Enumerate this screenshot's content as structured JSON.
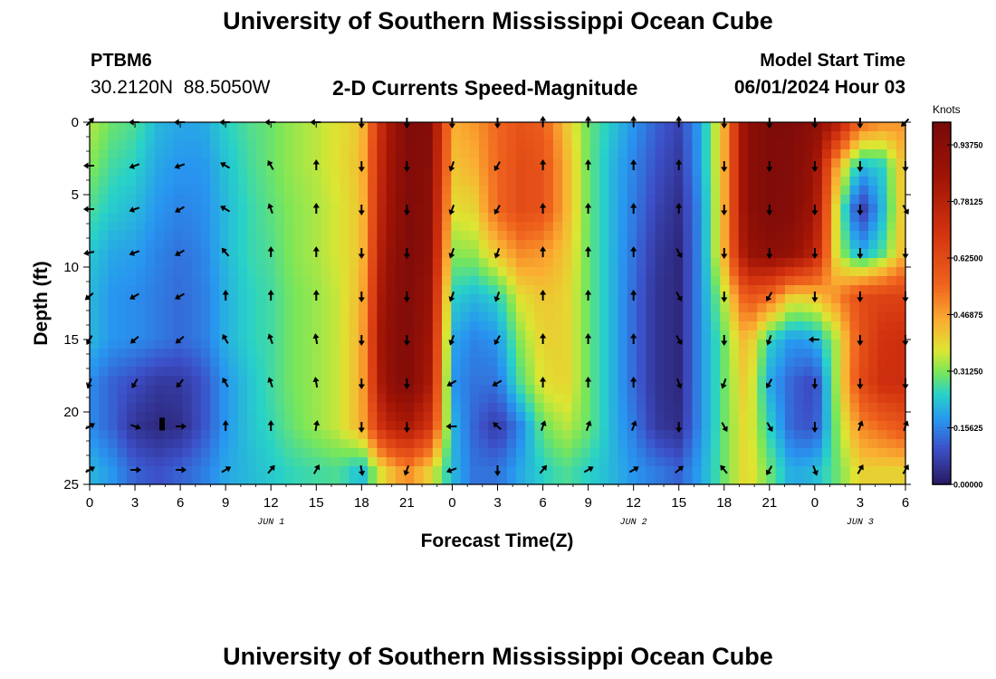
{
  "header": {
    "title": "University of Southern Mississippi Ocean Cube",
    "station_id": "PTBM6",
    "station_coords": "30.2120N  88.5050W",
    "product_title": "2-D Currents Speed-Magnitude",
    "model_start_label": "Model Start Time",
    "model_start_value": "06/01/2024 Hour 03"
  },
  "footer": {
    "title": "University of Southern Mississippi Ocean Cube"
  },
  "chart_data": {
    "type": "heatmap",
    "title": "2-D Currents Speed-Magnitude",
    "xlabel": "Forecast Time(Z)",
    "ylabel": "Depth (ft)",
    "x_ticks": [
      "0",
      "3",
      "6",
      "9",
      "12",
      "15",
      "18",
      "21",
      "0",
      "3",
      "6",
      "9",
      "12",
      "15",
      "18",
      "21",
      "0",
      "3",
      "6"
    ],
    "date_labels": [
      {
        "label": "JUN 1",
        "tick_index": 4
      },
      {
        "label": "JUN 2",
        "tick_index": 12
      },
      {
        "label": "JUN 3",
        "tick_index": 17
      }
    ],
    "y_ticks": [
      0,
      5,
      10,
      15,
      20,
      25
    ],
    "ylim": [
      0,
      25
    ],
    "x_hours_range": [
      0,
      54
    ],
    "colorbar": {
      "title": "Knots",
      "range": [
        0,
        1.0
      ],
      "tick_values": [
        0.0,
        0.15625,
        0.3125,
        0.46875,
        0.625,
        0.78125,
        0.9375
      ],
      "tick_labels": [
        "0.00000",
        "0.15625",
        "0.31250",
        "0.46875",
        "0.62500",
        "0.78125",
        "0.93750"
      ]
    },
    "speed_depths_ft": [
      0,
      3,
      6,
      9,
      12,
      15,
      18,
      21,
      24
    ],
    "speed_hours": [
      0,
      1.5,
      3,
      4.5,
      6,
      7.5,
      9,
      10.5,
      12,
      13.5,
      15,
      16.5,
      18,
      19.5,
      21,
      22.5,
      24,
      25.5,
      27,
      28.5,
      30,
      31.5,
      33,
      34.5,
      36,
      37.5,
      39,
      40.5,
      42,
      43.5,
      45,
      46.5,
      48,
      49.5,
      51,
      52.5,
      54
    ],
    "speed_knots": [
      [
        0.35,
        0.3,
        0.28,
        0.22,
        0.2,
        0.2,
        0.25,
        0.28,
        0.3,
        0.33,
        0.35,
        0.38,
        0.42,
        0.78,
        0.97,
        0.95,
        0.45,
        0.48,
        0.55,
        0.6,
        0.57,
        0.42,
        0.3,
        0.24,
        0.18,
        0.12,
        0.08,
        0.2,
        0.45,
        0.92,
        0.97,
        0.97,
        0.92,
        0.8,
        0.55,
        0.5,
        0.48
      ],
      [
        0.32,
        0.27,
        0.25,
        0.2,
        0.18,
        0.18,
        0.23,
        0.27,
        0.3,
        0.33,
        0.35,
        0.38,
        0.43,
        0.8,
        0.97,
        0.94,
        0.42,
        0.45,
        0.55,
        0.62,
        0.6,
        0.45,
        0.3,
        0.22,
        0.16,
        0.1,
        0.06,
        0.2,
        0.45,
        0.92,
        0.97,
        0.96,
        0.88,
        0.45,
        0.22,
        0.25,
        0.45
      ],
      [
        0.28,
        0.24,
        0.22,
        0.18,
        0.16,
        0.17,
        0.22,
        0.26,
        0.29,
        0.32,
        0.34,
        0.37,
        0.42,
        0.82,
        0.97,
        0.93,
        0.38,
        0.4,
        0.55,
        0.62,
        0.6,
        0.45,
        0.3,
        0.22,
        0.15,
        0.08,
        0.04,
        0.18,
        0.45,
        0.92,
        0.97,
        0.95,
        0.85,
        0.35,
        0.05,
        0.22,
        0.45
      ],
      [
        0.24,
        0.2,
        0.19,
        0.16,
        0.14,
        0.16,
        0.22,
        0.26,
        0.28,
        0.32,
        0.34,
        0.37,
        0.42,
        0.85,
        0.97,
        0.92,
        0.32,
        0.33,
        0.42,
        0.5,
        0.48,
        0.42,
        0.3,
        0.22,
        0.14,
        0.06,
        0.03,
        0.18,
        0.45,
        0.88,
        0.93,
        0.9,
        0.78,
        0.35,
        0.2,
        0.28,
        0.45
      ],
      [
        0.22,
        0.18,
        0.17,
        0.15,
        0.13,
        0.15,
        0.21,
        0.25,
        0.27,
        0.31,
        0.33,
        0.36,
        0.44,
        0.88,
        0.97,
        0.88,
        0.25,
        0.22,
        0.25,
        0.38,
        0.42,
        0.4,
        0.3,
        0.22,
        0.13,
        0.05,
        0.03,
        0.18,
        0.35,
        0.6,
        0.55,
        0.4,
        0.42,
        0.5,
        0.62,
        0.65,
        0.65
      ],
      [
        0.22,
        0.18,
        0.17,
        0.15,
        0.13,
        0.15,
        0.21,
        0.25,
        0.27,
        0.31,
        0.33,
        0.36,
        0.45,
        0.9,
        0.97,
        0.85,
        0.2,
        0.16,
        0.18,
        0.32,
        0.4,
        0.4,
        0.3,
        0.22,
        0.13,
        0.05,
        0.03,
        0.18,
        0.3,
        0.45,
        0.25,
        0.18,
        0.2,
        0.35,
        0.6,
        0.7,
        0.72
      ],
      [
        0.17,
        0.12,
        0.09,
        0.06,
        0.06,
        0.1,
        0.18,
        0.23,
        0.27,
        0.31,
        0.33,
        0.36,
        0.45,
        0.88,
        0.97,
        0.82,
        0.18,
        0.14,
        0.14,
        0.28,
        0.38,
        0.4,
        0.3,
        0.22,
        0.13,
        0.05,
        0.03,
        0.18,
        0.3,
        0.42,
        0.2,
        0.12,
        0.08,
        0.35,
        0.62,
        0.72,
        0.72
      ],
      [
        0.17,
        0.12,
        0.05,
        0.03,
        0.04,
        0.1,
        0.18,
        0.23,
        0.26,
        0.3,
        0.33,
        0.36,
        0.45,
        0.75,
        0.82,
        0.7,
        0.22,
        0.12,
        0.06,
        0.16,
        0.3,
        0.35,
        0.3,
        0.22,
        0.15,
        0.06,
        0.04,
        0.18,
        0.3,
        0.4,
        0.25,
        0.12,
        0.1,
        0.32,
        0.5,
        0.55,
        0.6
      ],
      [
        0.22,
        0.18,
        0.12,
        0.1,
        0.12,
        0.15,
        0.2,
        0.22,
        0.24,
        0.26,
        0.27,
        0.28,
        0.22,
        0.4,
        0.5,
        0.4,
        0.22,
        0.14,
        0.14,
        0.2,
        0.25,
        0.28,
        0.25,
        0.22,
        0.18,
        0.15,
        0.12,
        0.2,
        0.3,
        0.4,
        0.3,
        0.2,
        0.22,
        0.3,
        0.4,
        0.4,
        0.4
      ]
    ],
    "vector_hours": [
      0,
      3,
      6,
      9,
      12,
      15,
      18,
      21,
      24,
      27,
      30,
      33,
      36,
      39,
      42,
      45,
      48,
      51,
      54
    ],
    "vector_depths_ft": [
      0,
      3,
      6,
      9,
      12,
      15,
      18,
      21,
      24
    ],
    "vector_directions_deg": [
      [
        45,
        270,
        270,
        270,
        270,
        270,
        180,
        180,
        180,
        180,
        0,
        0,
        0,
        0,
        180,
        180,
        180,
        180,
        225
      ],
      [
        270,
        250,
        250,
        300,
        330,
        0,
        180,
        180,
        200,
        210,
        0,
        0,
        0,
        0,
        180,
        180,
        180,
        180,
        180
      ],
      [
        270,
        250,
        240,
        300,
        340,
        0,
        180,
        180,
        200,
        210,
        0,
        0,
        0,
        0,
        180,
        180,
        180,
        180,
        150
      ],
      [
        260,
        250,
        240,
        320,
        0,
        0,
        180,
        180,
        200,
        200,
        0,
        0,
        0,
        150,
        180,
        180,
        180,
        180,
        180
      ],
      [
        230,
        240,
        240,
        0,
        0,
        0,
        180,
        180,
        200,
        200,
        0,
        0,
        0,
        150,
        180,
        210,
        180,
        180,
        180
      ],
      [
        210,
        230,
        230,
        330,
        340,
        350,
        180,
        180,
        200,
        210,
        0,
        0,
        0,
        150,
        180,
        200,
        270,
        180,
        180
      ],
      [
        200,
        210,
        220,
        330,
        340,
        350,
        180,
        180,
        240,
        240,
        0,
        0,
        0,
        160,
        200,
        210,
        180,
        180,
        180
      ],
      [
        60,
        110,
        90,
        0,
        0,
        10,
        180,
        180,
        270,
        310,
        20,
        20,
        20,
        180,
        150,
        150,
        180,
        20,
        20
      ],
      [
        60,
        90,
        90,
        60,
        40,
        30,
        170,
        200,
        250,
        180,
        40,
        60,
        60,
        50,
        320,
        210,
        160,
        30,
        30
      ]
    ]
  }
}
